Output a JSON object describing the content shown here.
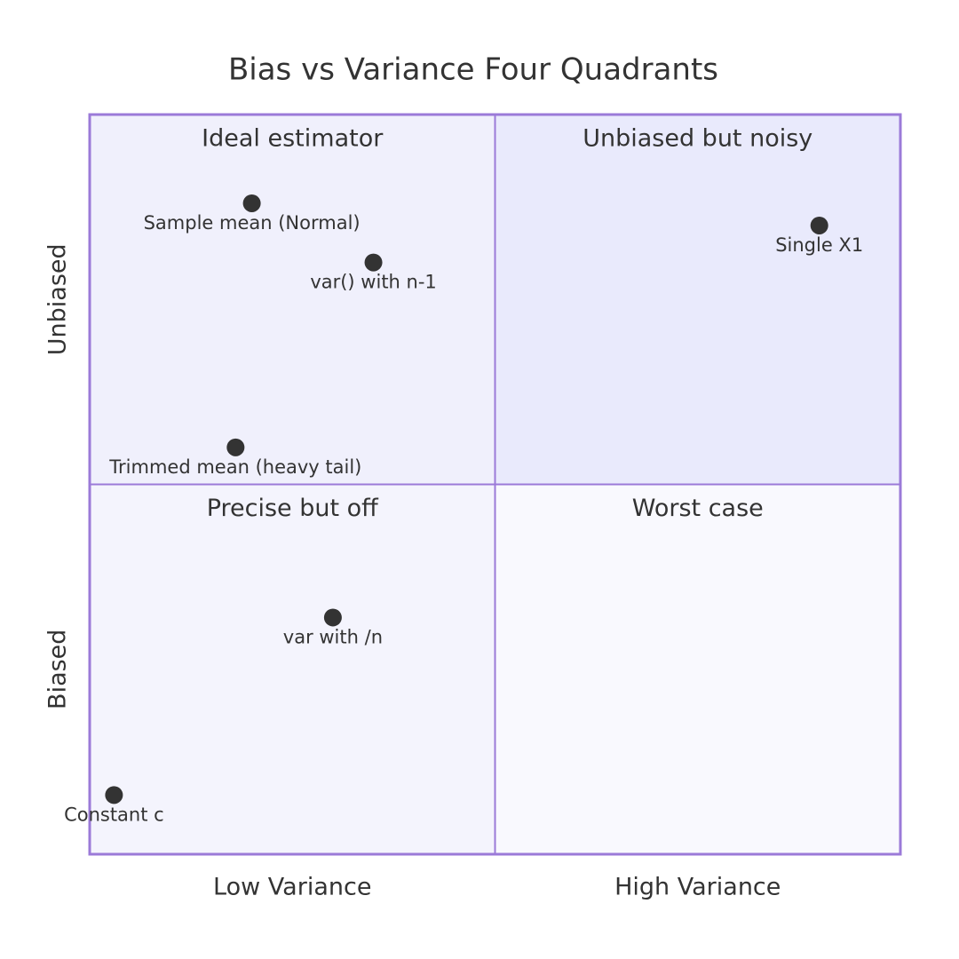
{
  "chart_data": {
    "type": "quadrant",
    "title": "Bias vs Variance Four Quadrants",
    "x_axis_labels": [
      "Low Variance",
      "High Variance"
    ],
    "y_axis_labels": [
      "Biased",
      "Unbiased"
    ],
    "xlim": [
      0,
      1
    ],
    "ylim": [
      0,
      1
    ],
    "border_color": "#9b7ad8",
    "point_color": "#333333",
    "quadrants": [
      {
        "label": "Ideal estimator",
        "color": "#f0f0fc"
      },
      {
        "label": "Unbiased but noisy",
        "color": "#e9eafc"
      },
      {
        "label": "Precise but off",
        "color": "#f4f4fd"
      },
      {
        "label": "Worst case",
        "color": "#f9f9fe"
      }
    ],
    "points": [
      {
        "name": "Sample mean (Normal)",
        "x": 0.2,
        "y": 0.88
      },
      {
        "name": "var() with n-1",
        "x": 0.35,
        "y": 0.8
      },
      {
        "name": "Trimmed mean (heavy tail)",
        "x": 0.18,
        "y": 0.55
      },
      {
        "name": "Single X1",
        "x": 0.9,
        "y": 0.85
      },
      {
        "name": "var with /n",
        "x": 0.3,
        "y": 0.32
      },
      {
        "name": "Constant c",
        "x": 0.03,
        "y": 0.08
      }
    ]
  }
}
